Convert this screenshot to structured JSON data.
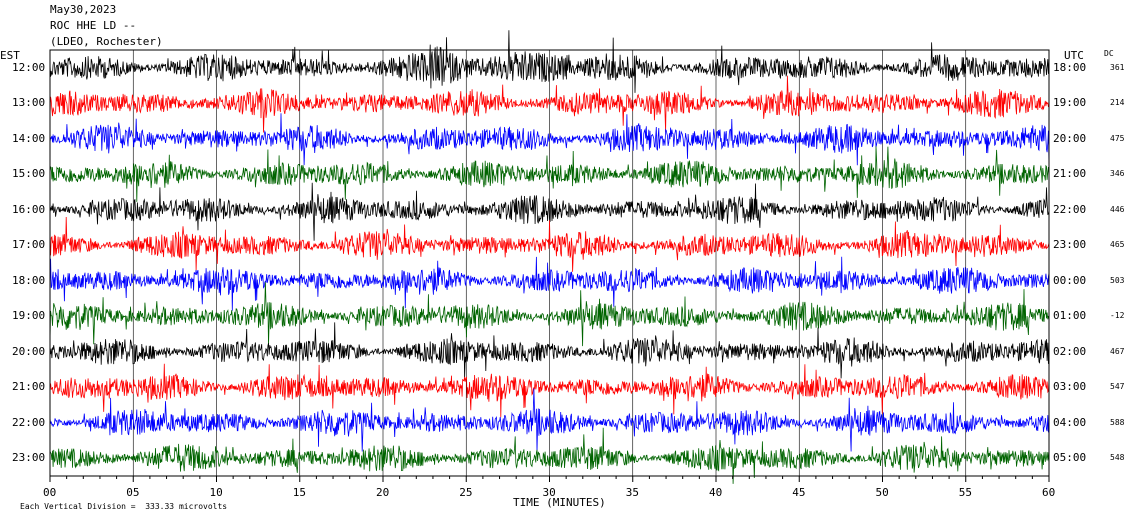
{
  "header": {
    "date": "May30,2023",
    "station": "ROC HHE LD --",
    "network": "(LDEO, Rochester)"
  },
  "labels": {
    "left_tz": "EST",
    "right_tz": "UTC",
    "dc": "DC",
    "xlabel": "TIME (MINUTES)",
    "footer": "Each Vertical Division =  333.33 microvolts"
  },
  "chart_data": {
    "type": "line",
    "title": "May30,2023 ROC HHE LD -- (LDEO, Rochester)",
    "xlabel": "TIME (MINUTES)",
    "x_ticks": [
      "00",
      "05",
      "10",
      "15",
      "20",
      "25",
      "30",
      "35",
      "40",
      "45",
      "50",
      "55",
      "60"
    ],
    "xlim": [
      0,
      60
    ],
    "left_labels": [
      "12:00",
      "13:00",
      "14:00",
      "15:00",
      "16:00",
      "17:00",
      "18:00",
      "19:00",
      "20:00",
      "21:00",
      "22:00",
      "23:00"
    ],
    "right_labels": [
      "18:00",
      "19:00",
      "20:00",
      "21:00",
      "22:00",
      "23:00",
      "00:00",
      "01:00",
      "02:00",
      "03:00",
      "04:00",
      "05:00"
    ],
    "dc_values": [
      "361",
      "214",
      "475",
      "346",
      "446",
      "465",
      "503",
      "-12",
      "467",
      "547",
      "588",
      "548"
    ],
    "trace_colors": [
      "#000000",
      "#ff0000",
      "#0000ff",
      "#006400",
      "#000000",
      "#ff0000",
      "#0000ff",
      "#006400",
      "#000000",
      "#ff0000",
      "#0000ff",
      "#006400"
    ],
    "vertical_division": "333.33 microvolts",
    "grid": true
  }
}
